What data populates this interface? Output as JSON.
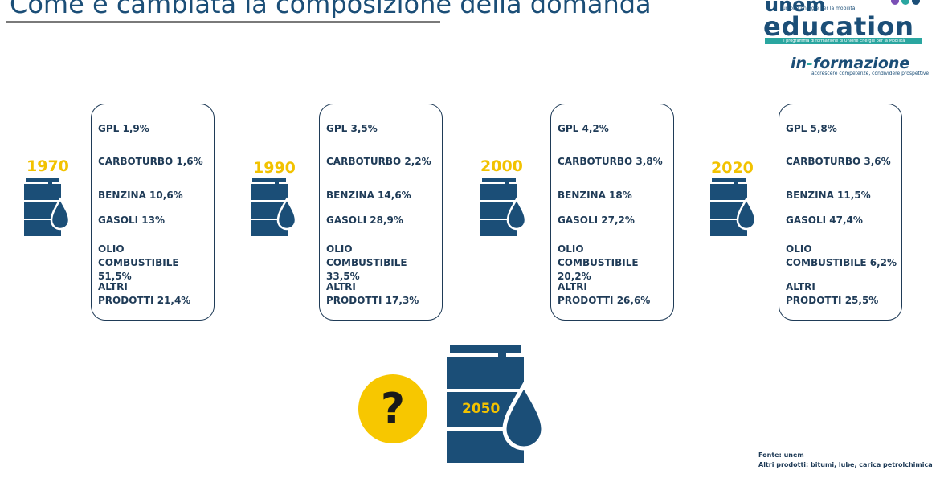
{
  "header": {
    "title": "Come è cambiata la composizione della domanda"
  },
  "logo": {
    "unem": "unem",
    "unem_sub": "unione energie per la mobilità",
    "education": "education",
    "education_sub": "Il programma di formazione di Unione Energie per la Mobilità",
    "informazione_prefix": "in",
    "informazione_accent": "-",
    "informazione_suffix": "formazione",
    "informazione_sub": "accrescere competenze, condividere prospettive"
  },
  "years": [
    {
      "year": "1970",
      "items": [
        "GPL 1,9%",
        "CARBOTURBO 1,6%",
        "BENZINA 10,6%",
        "GASOLI 13%",
        "OLIO\nCOMBUSTIBILE 51,5%",
        "ALTRI\nPRODOTTI 21,4%"
      ]
    },
    {
      "year": "1990",
      "items": [
        "GPL 3,5%",
        "CARBOTURBO 2,2%",
        "BENZINA 14,6%",
        "GASOLI 28,9%",
        "OLIO\nCOMBUSTIBILE 33,5%",
        "ALTRI\nPRODOTTI 17,3%"
      ]
    },
    {
      "year": "2000",
      "items": [
        "GPL 4,2%",
        "CARBOTURBO 3,8%",
        "BENZINA 18%",
        "GASOLI 27,2%",
        "OLIO\nCOMBUSTIBILE 20,2%",
        "ALTRI\nPRODOTTI 26,6%"
      ]
    },
    {
      "year": "2020",
      "items": [
        "GPL 5,8%",
        "CARBOTURBO 3,6%",
        "BENZINA 11,5%",
        "GASOLI 47,4%",
        "OLIO\nCOMBUSTIBILE 6,2%",
        "ALTRI\nPRODOTTI 25,5%"
      ]
    }
  ],
  "future": {
    "question_mark": "?",
    "year": "2050"
  },
  "source": {
    "line1": "Fonte: unem",
    "line2": "Altri prodotti: bitumi, lube, carica petrolchimica"
  },
  "colors": {
    "barrel": "#1b4e77",
    "year": "#f2c200",
    "question_bg": "#f7c700",
    "teal": "#2aa6a0"
  }
}
